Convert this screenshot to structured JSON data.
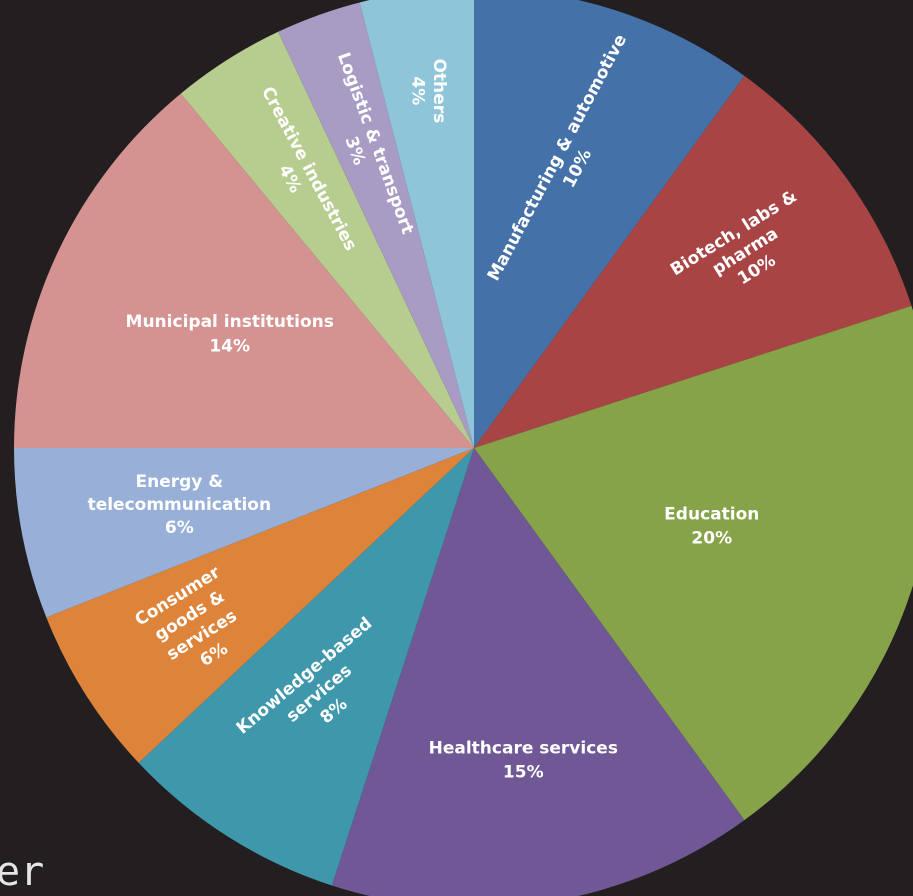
{
  "chart_data": {
    "type": "pie",
    "title": "",
    "start_angle_deg": 0,
    "direction": "clockwise",
    "slices": [
      {
        "label_lines": [
          "Manufacturing & automotive",
          "10%"
        ],
        "value": 10,
        "color": "#4472a8"
      },
      {
        "label_lines": [
          "Biotech, labs &",
          "pharma",
          "10%"
        ],
        "value": 10,
        "color": "#a94444"
      },
      {
        "label_lines": [
          "Education",
          "20%"
        ],
        "value": 20,
        "color": "#86a34a"
      },
      {
        "label_lines": [
          "Healthcare services",
          "15%"
        ],
        "value": 15,
        "color": "#6f5895"
      },
      {
        "label_lines": [
          "Knowledge-based",
          "services",
          "8%"
        ],
        "value": 8,
        "color": "#3e97ab"
      },
      {
        "label_lines": [
          "Consumer",
          "goods &",
          "services",
          "6%"
        ],
        "value": 6,
        "color": "#de843a"
      },
      {
        "label_lines": [
          "Energy &",
          "telecommunication",
          "6%"
        ],
        "value": 6,
        "color": "#98afd8"
      },
      {
        "label_lines": [
          "Municipal institutions",
          "14%"
        ],
        "value": 14,
        "color": "#d49290"
      },
      {
        "label_lines": [
          "Creative industries",
          "4%"
        ],
        "value": 4,
        "color": "#b7cd8f"
      },
      {
        "label_lines": [
          "Logistic & transport",
          "3%"
        ],
        "value": 3,
        "color": "#a89cc4"
      },
      {
        "label_lines": [
          "Others",
          "4%"
        ],
        "value": 4,
        "color": "#8fc5d8"
      }
    ]
  },
  "corner_text": "er"
}
